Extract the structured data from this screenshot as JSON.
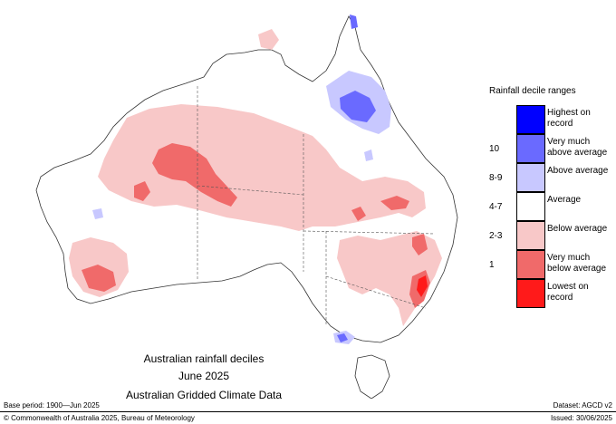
{
  "legend": {
    "title": "Rainfall decile ranges",
    "rows": [
      {
        "range": "",
        "label": "Highest on record",
        "color": "#0000ff"
      },
      {
        "range": "10",
        "label": "Very much above average",
        "color": "#6a6aff"
      },
      {
        "range": "8-9",
        "label": "Above average",
        "color": "#c8c8ff"
      },
      {
        "range": "4-7",
        "label": "Average",
        "color": "#ffffff"
      },
      {
        "range": "2-3",
        "label": "Below average",
        "color": "#f8c8c8"
      },
      {
        "range": "1",
        "label": "Very much below average",
        "color": "#f06a6a"
      },
      {
        "range": "",
        "label": "Lowest on record",
        "color": "#ff1a1a"
      }
    ]
  },
  "map": {
    "title_line1": "Australian rainfall deciles",
    "title_line2": "June 2025",
    "title_line3": "Australian Gridded Climate Data",
    "region": "Australia"
  },
  "footer": {
    "base_period": "Base period: 1900—Jun 2025",
    "dataset": "Dataset: AGCD v2",
    "copyright": "© Commonwealth of Australia 2025, Bureau of Meteorology",
    "issued": "Issued: 30/06/2025"
  }
}
